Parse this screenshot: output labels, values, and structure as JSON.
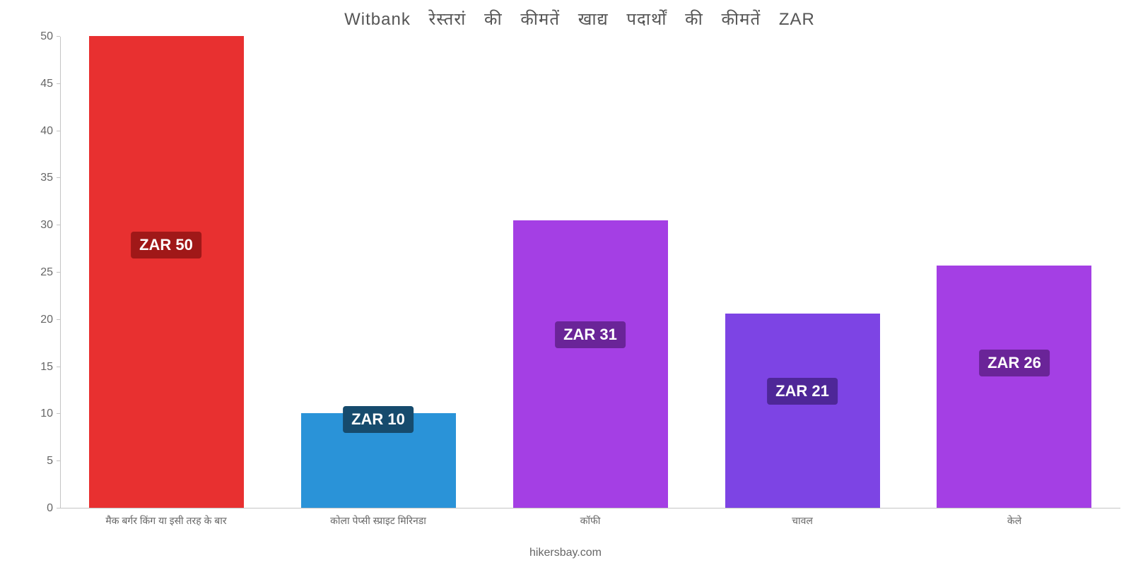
{
  "chart": {
    "type": "bar",
    "title": "Witbank रेस्तरां की कीमतें खाद्य पदार्थों की कीमतें ZAR",
    "title_fontsize": 24,
    "title_color": "#555555",
    "background_color": "#ffffff",
    "ylim_min": 0,
    "ylim_max": 50,
    "ytick_step": 5,
    "yticks": [
      0,
      5,
      10,
      15,
      20,
      25,
      30,
      35,
      40,
      45,
      50
    ],
    "axis_color": "#c4c4c4",
    "tick_label_color": "#666666",
    "tick_label_fontsize": 16,
    "x_label_fontsize": 14,
    "bar_width_pct": 14.6,
    "slot_width_pct": 20,
    "categories": [
      {
        "label": "मैक बर्गर किंग या इसी तरह के बार",
        "value": 50,
        "color": "#e83030",
        "badge_text": "ZAR 50",
        "badge_bg": "#a01818",
        "badge_bottom_pct": 53
      },
      {
        "label": "कोला पेप्सी स्प्राइट मिरिनडा",
        "value": 10,
        "color": "#2a93d8",
        "badge_text": "ZAR 10",
        "badge_bg": "#164b6d",
        "badge_bottom_pct": 16
      },
      {
        "label": "कॉफी",
        "value": 30.5,
        "color": "#a43fe4",
        "badge_text": "ZAR 31",
        "badge_bg": "#6a2498",
        "badge_bottom_pct": 34
      },
      {
        "label": "चावल",
        "value": 20.6,
        "color": "#7d44e4",
        "badge_text": "ZAR 21",
        "badge_bg": "#4e2798",
        "badge_bottom_pct": 22
      },
      {
        "label": "केले",
        "value": 25.7,
        "color": "#a43fe4",
        "badge_text": "ZAR 26",
        "badge_bg": "#6a2498",
        "badge_bottom_pct": 28
      }
    ],
    "attribution": "hikersbay.com"
  }
}
